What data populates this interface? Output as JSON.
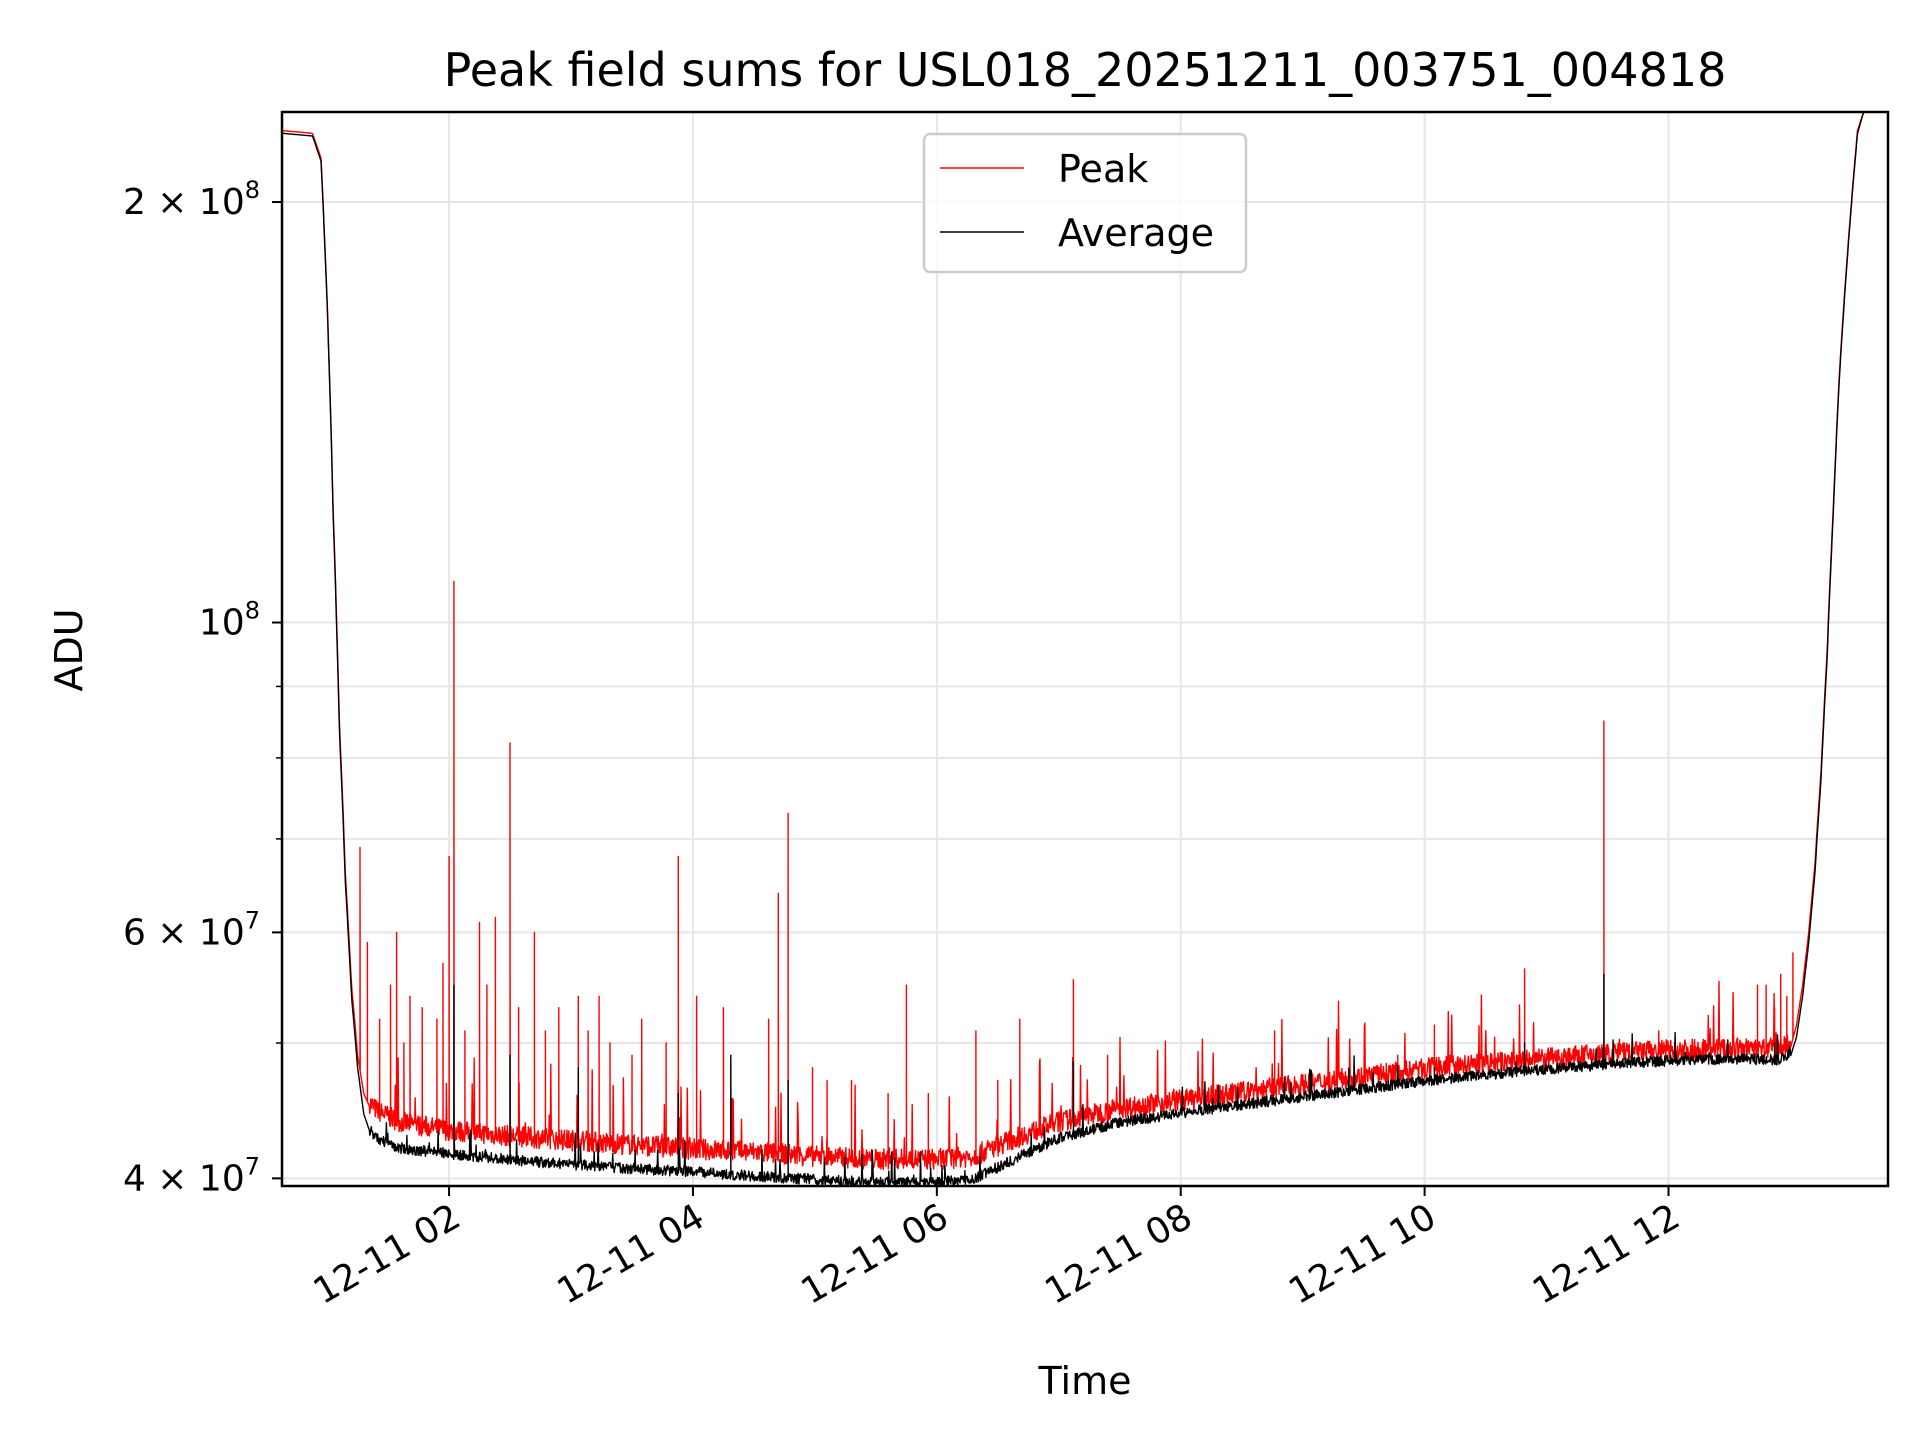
{
  "chart_data": {
    "type": "line",
    "title": "Peak field sums for USL018_20251211_003751_004818",
    "xlabel": "Time",
    "ylabel": "ADU",
    "yscale": "log",
    "x_unit": "hours since 2025-12-11 00:00",
    "xlim": [
      0.63,
      13.8
    ],
    "ylim": [
      39500000,
      232000000
    ],
    "grid": true,
    "legend_position": "top-center",
    "x_ticks": [
      {
        "value": 2,
        "label": "12-11 02"
      },
      {
        "value": 4,
        "label": "12-11 04"
      },
      {
        "value": 6,
        "label": "12-11 06"
      },
      {
        "value": 8,
        "label": "12-11 08"
      },
      {
        "value": 10,
        "label": "12-11 10"
      },
      {
        "value": 12,
        "label": "12-11 12"
      }
    ],
    "y_ticks_major": [
      {
        "value": 40000000,
        "mantissa": "4",
        "times": "×",
        "base": "10",
        "exp": "7"
      },
      {
        "value": 60000000,
        "mantissa": "6",
        "times": "×",
        "base": "10",
        "exp": "7"
      },
      {
        "value": 100000000,
        "mantissa": "",
        "times": "",
        "base": "10",
        "exp": "8"
      },
      {
        "value": 200000000,
        "mantissa": "2",
        "times": "×",
        "base": "10",
        "exp": "8"
      }
    ],
    "y_ticks_minor": [
      50000000,
      70000000,
      80000000,
      90000000
    ],
    "series": [
      {
        "name": "Peak",
        "color": "#ff0000",
        "baseline": {
          "x": [
            0.63,
            0.88,
            0.95,
            1.0,
            1.05,
            1.1,
            1.15,
            1.2,
            1.25,
            1.3,
            1.35,
            1.4,
            1.5,
            1.6,
            1.8,
            2.0,
            2.5,
            3.0,
            3.5,
            4.0,
            4.5,
            5.0,
            5.5,
            6.0,
            6.3,
            6.6,
            7.0,
            7.5,
            8.0,
            8.5,
            9.0,
            9.5,
            10.0,
            10.5,
            11.0,
            11.5,
            12.0,
            12.5,
            12.9,
            13.0,
            13.05,
            13.1,
            13.15,
            13.2,
            13.25,
            13.3,
            13.35,
            13.4,
            13.45,
            13.5,
            13.55,
            13.6,
            13.8
          ],
          "y": [
            225000000,
            224000000,
            215000000,
            170000000,
            120000000,
            85000000,
            66000000,
            55000000,
            49000000,
            46000000,
            45000000,
            44500000,
            44000000,
            43600000,
            43300000,
            43000000,
            42600000,
            42300000,
            42000000,
            41700000,
            41500000,
            41200000,
            41000000,
            41000000,
            41200000,
            42300000,
            43600000,
            44600000,
            45200000,
            45800000,
            46400000,
            47000000,
            47600000,
            48000000,
            48400000,
            48800000,
            49100000,
            49200000,
            49200000,
            49600000,
            51500000,
            55000000,
            60000000,
            67000000,
            78000000,
            95000000,
            120000000,
            150000000,
            175000000,
            200000000,
            225000000,
            232000000,
            232000000
          ]
        },
        "spikes": [
          {
            "x": 1.27,
            "y": 69000000
          },
          {
            "x": 1.33,
            "y": 59000000
          },
          {
            "x": 1.43,
            "y": 52000000
          },
          {
            "x": 1.52,
            "y": 55000000
          },
          {
            "x": 1.57,
            "y": 60000000
          },
          {
            "x": 1.63,
            "y": 50000000
          },
          {
            "x": 1.68,
            "y": 54000000
          },
          {
            "x": 1.78,
            "y": 53000000
          },
          {
            "x": 1.9,
            "y": 52000000
          },
          {
            "x": 1.95,
            "y": 57000000
          },
          {
            "x": 2.0,
            "y": 68000000
          },
          {
            "x": 2.04,
            "y": 107000000
          },
          {
            "x": 2.13,
            "y": 51000000
          },
          {
            "x": 2.25,
            "y": 61000000
          },
          {
            "x": 2.31,
            "y": 55000000
          },
          {
            "x": 2.38,
            "y": 61500000
          },
          {
            "x": 2.5,
            "y": 82000000
          },
          {
            "x": 2.57,
            "y": 53000000
          },
          {
            "x": 2.7,
            "y": 60000000
          },
          {
            "x": 2.79,
            "y": 51000000
          },
          {
            "x": 2.9,
            "y": 53000000
          },
          {
            "x": 3.06,
            "y": 54000000
          },
          {
            "x": 3.14,
            "y": 51000000
          },
          {
            "x": 3.23,
            "y": 54000000
          },
          {
            "x": 3.32,
            "y": 50000000
          },
          {
            "x": 3.5,
            "y": 49000000
          },
          {
            "x": 3.58,
            "y": 52000000
          },
          {
            "x": 3.78,
            "y": 50000000
          },
          {
            "x": 3.88,
            "y": 68000000
          },
          {
            "x": 4.03,
            "y": 54000000
          },
          {
            "x": 4.25,
            "y": 53000000
          },
          {
            "x": 4.31,
            "y": 48500000
          },
          {
            "x": 4.62,
            "y": 52000000
          },
          {
            "x": 4.7,
            "y": 64000000
          },
          {
            "x": 4.78,
            "y": 73000000
          },
          {
            "x": 4.98,
            "y": 48000000
          },
          {
            "x": 5.1,
            "y": 47000000
          },
          {
            "x": 5.3,
            "y": 47000000
          },
          {
            "x": 5.6,
            "y": 46000000
          },
          {
            "x": 5.75,
            "y": 55000000
          },
          {
            "x": 5.93,
            "y": 46000000
          },
          {
            "x": 6.32,
            "y": 51000000
          },
          {
            "x": 6.5,
            "y": 47000000
          },
          {
            "x": 6.68,
            "y": 52000000
          },
          {
            "x": 7.12,
            "y": 55500000
          },
          {
            "x": 7.4,
            "y": 49000000
          },
          {
            "x": 8.77,
            "y": 51000000
          },
          {
            "x": 8.9,
            "y": 46500000
          },
          {
            "x": 9.37,
            "y": 47000000
          },
          {
            "x": 9.78,
            "y": 49000000
          },
          {
            "x": 10.08,
            "y": 51500000
          },
          {
            "x": 10.63,
            "y": 48500000
          },
          {
            "x": 10.82,
            "y": 56500000
          },
          {
            "x": 11.17,
            "y": 49000000
          },
          {
            "x": 11.47,
            "y": 85000000
          },
          {
            "x": 11.92,
            "y": 51000000
          },
          {
            "x": 12.73,
            "y": 55000000
          },
          {
            "x": 12.8,
            "y": 55000000
          },
          {
            "x": 12.87,
            "y": 53000000
          },
          {
            "x": 12.92,
            "y": 56000000
          },
          {
            "x": 12.97,
            "y": 54000000
          },
          {
            "x": 13.02,
            "y": 58000000
          }
        ]
      },
      {
        "name": "Average",
        "color": "#000000",
        "baseline": {
          "x": [
            0.63,
            0.88,
            0.95,
            1.0,
            1.05,
            1.1,
            1.15,
            1.2,
            1.25,
            1.3,
            1.35,
            1.4,
            1.5,
            1.6,
            1.8,
            2.0,
            2.5,
            3.0,
            3.5,
            4.0,
            4.5,
            5.0,
            5.5,
            6.0,
            6.3,
            6.6,
            7.0,
            7.5,
            8.0,
            8.5,
            9.0,
            9.5,
            10.0,
            10.5,
            11.0,
            11.5,
            12.0,
            12.5,
            12.9,
            13.0,
            13.05,
            13.1,
            13.15,
            13.2,
            13.25,
            13.3,
            13.35,
            13.4,
            13.45,
            13.5,
            13.55,
            13.6,
            13.8
          ],
          "y": [
            224000000,
            223000000,
            214000000,
            169000000,
            119000000,
            84000000,
            65000000,
            54000000,
            48000000,
            44500000,
            43200000,
            42600000,
            42200000,
            41900000,
            41700000,
            41500000,
            41100000,
            40800000,
            40500000,
            40300000,
            40000000,
            39800000,
            39600000,
            39600000,
            39800000,
            41000000,
            42600000,
            43700000,
            44400000,
            45000000,
            45600000,
            46200000,
            46800000,
            47300000,
            47700000,
            48100000,
            48400000,
            48500000,
            48500000,
            48900000,
            50500000,
            54000000,
            59000000,
            66000000,
            77000000,
            94000000,
            119000000,
            149000000,
            174000000,
            199000000,
            224000000,
            232000000,
            232000000
          ]
        },
        "spikes": [
          {
            "x": 2.04,
            "y": 55000000
          },
          {
            "x": 2.5,
            "y": 49000000
          },
          {
            "x": 3.06,
            "y": 48000000
          },
          {
            "x": 3.88,
            "y": 46000000
          },
          {
            "x": 4.31,
            "y": 49000000
          },
          {
            "x": 4.78,
            "y": 47000000
          },
          {
            "x": 7.12,
            "y": 48500000
          },
          {
            "x": 10.08,
            "y": 48000000
          },
          {
            "x": 10.82,
            "y": 50000000
          },
          {
            "x": 11.47,
            "y": 56000000
          },
          {
            "x": 12.87,
            "y": 50000000
          }
        ]
      }
    ]
  }
}
